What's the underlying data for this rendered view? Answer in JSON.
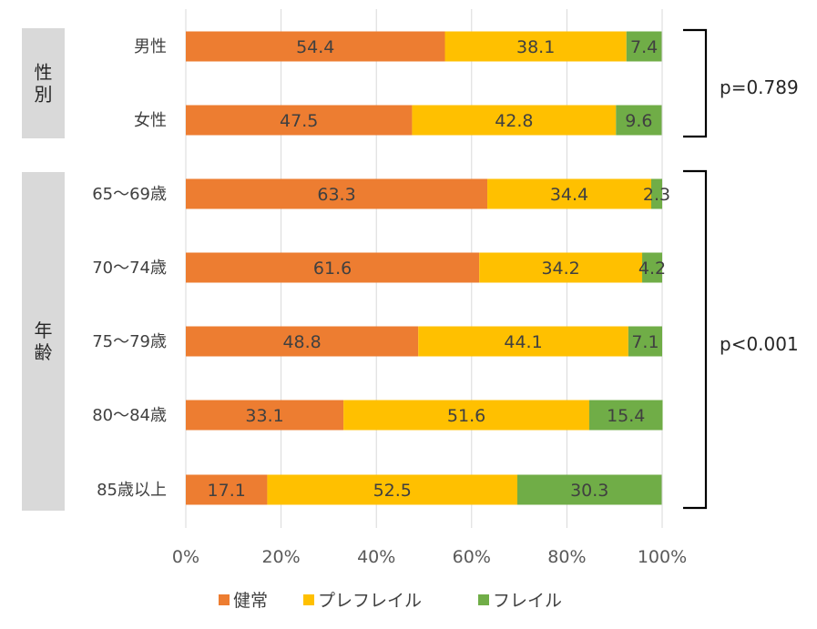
{
  "chart_data": {
    "type": "bar",
    "orientation": "horizontal",
    "stacked": true,
    "categories": [
      "男性",
      "女性",
      "65～69歳",
      "70～74歳",
      "75～79歳",
      "80～84歳",
      "85歳以上"
    ],
    "series": [
      {
        "name": "健常",
        "color": "#ED7D31",
        "values": [
          54.4,
          47.5,
          63.3,
          61.6,
          48.8,
          33.1,
          17.1
        ]
      },
      {
        "name": "プレフレイル",
        "color": "#FFC000",
        "values": [
          38.1,
          42.8,
          34.4,
          34.2,
          44.1,
          51.6,
          52.5
        ]
      },
      {
        "name": "フレイル",
        "color": "#70AD47",
        "values": [
          7.4,
          9.6,
          2.3,
          4.2,
          7.1,
          15.4,
          30.3
        ]
      }
    ],
    "xlim": [
      0,
      100
    ],
    "x_ticks": [
      "0%",
      "20%",
      "40%",
      "60%",
      "80%",
      "100%"
    ],
    "grid": true,
    "legend_position": "bottom",
    "groups": [
      {
        "label": "性別",
        "p_value": "p=0.789"
      },
      {
        "label": "年齢",
        "p_value": "p<0.001"
      }
    ]
  }
}
